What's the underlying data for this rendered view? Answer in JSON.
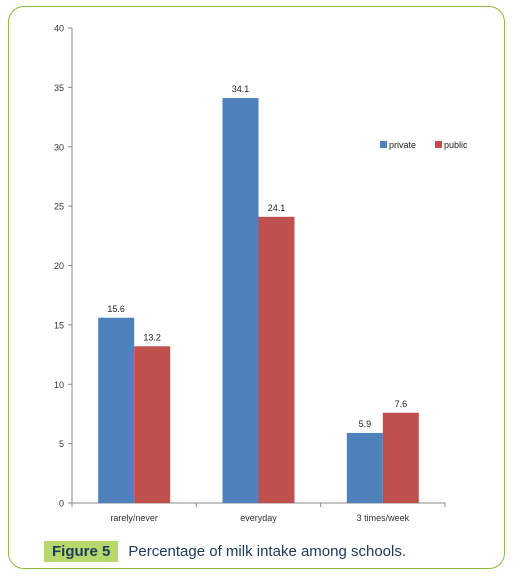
{
  "chart_data": {
    "type": "bar",
    "categories": [
      "rarely/never",
      "everyday",
      "3 times/week"
    ],
    "series": [
      {
        "name": "private",
        "values": [
          15.6,
          34.1,
          5.9
        ],
        "color": "#4f81bd"
      },
      {
        "name": "public",
        "values": [
          13.2,
          24.1,
          7.6
        ],
        "color": "#c0504d"
      }
    ],
    "ylim": [
      0,
      40
    ],
    "yticks": [
      0,
      5,
      10,
      15,
      20,
      25,
      30,
      35,
      40
    ],
    "value_labels": {
      "private": [
        "15.6",
        "34.1",
        "5.9"
      ],
      "public": [
        "13.2",
        "24.1",
        "7.6"
      ]
    },
    "legend_position": "top-right",
    "grid": false
  },
  "caption": {
    "label": "Figure 5",
    "text": "Percentage of milk intake among schools."
  }
}
